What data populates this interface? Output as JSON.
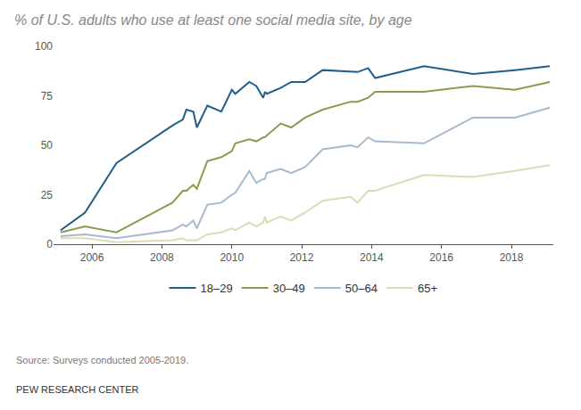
{
  "chart_data": {
    "type": "line",
    "title": "% of U.S. adults who use at least one social media site, by age",
    "x": [
      2005.1,
      2005.8,
      2006.7,
      2008.3,
      2008.6,
      2008.7,
      2008.9,
      2009.0,
      2009.3,
      2009.7,
      2010.0,
      2010.1,
      2010.5,
      2010.7,
      2010.9,
      2010.95,
      2011.0,
      2011.4,
      2011.7,
      2012.1,
      2012.6,
      2013.4,
      2013.6,
      2013.9,
      2014.1,
      2015.5,
      2016.9,
      2018.1,
      2019.1
    ],
    "series": [
      {
        "name": "18–29",
        "color": "#1f5f8b",
        "values": [
          7,
          16,
          41,
          60,
          63,
          68,
          67,
          59,
          70,
          67,
          78,
          76,
          82,
          80,
          74,
          77,
          76,
          79,
          82,
          82,
          88,
          87,
          87,
          89,
          84,
          90,
          86,
          88,
          90
        ]
      },
      {
        "name": "30–49",
        "color": "#8c9b4e",
        "values": [
          6,
          9,
          6,
          21,
          27,
          27,
          30,
          28,
          42,
          44,
          47,
          51,
          53,
          52,
          54,
          54,
          55,
          61,
          59,
          64,
          68,
          72,
          72,
          74,
          77,
          77,
          80,
          78,
          82
        ]
      },
      {
        "name": "50–64",
        "color": "#a7b9cc",
        "values": [
          4,
          5,
          3,
          7,
          10,
          9,
          12,
          8,
          20,
          21,
          25,
          26,
          37,
          31,
          33,
          33,
          36,
          38,
          36,
          39,
          48,
          50,
          49,
          54,
          52,
          51,
          64,
          64,
          69
        ]
      },
      {
        "name": "65+",
        "color": "#dadcb6",
        "values": [
          3,
          3,
          1,
          2,
          3,
          2,
          2,
          2,
          5,
          6,
          8,
          7,
          11,
          9,
          11,
          14,
          11,
          14,
          12,
          16,
          22,
          24,
          21,
          27,
          27,
          35,
          34,
          37,
          40
        ]
      }
    ],
    "xlim": [
      2004.9,
      2019.2
    ],
    "xticks": [
      2006,
      2008,
      2010,
      2012,
      2014,
      2016,
      2018
    ],
    "ylim": [
      0,
      100
    ],
    "yticks": [
      0,
      25,
      50,
      75,
      100
    ],
    "grid": false,
    "legend": "bottom",
    "annotations": [
      "Source: Surveys conducted 2005-2019.",
      "PEW RESEARCH CENTER"
    ]
  }
}
